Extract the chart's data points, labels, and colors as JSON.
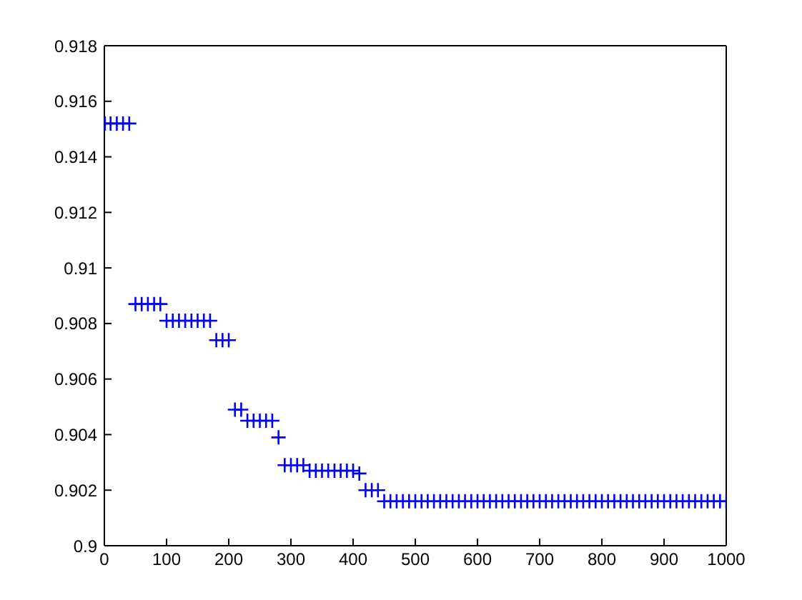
{
  "chart_data": {
    "type": "scatter",
    "marker": "cross",
    "xlim": [
      0,
      1000
    ],
    "xticks": [
      0,
      100,
      200,
      300,
      400,
      500,
      600,
      700,
      800,
      900,
      1000
    ],
    "ylim": [
      0.9,
      0.918
    ],
    "yticks": [
      0.9,
      0.902,
      0.904,
      0.906,
      0.908,
      0.91,
      0.912,
      0.914,
      0.916,
      0.918
    ],
    "series": [
      {
        "color": "#0000ff",
        "x": [
          1,
          10,
          20,
          30,
          40,
          50,
          60,
          70,
          80,
          90,
          100,
          110,
          120,
          130,
          140,
          150,
          160,
          170,
          180,
          190,
          200,
          210,
          220,
          230,
          240,
          250,
          260,
          270,
          280,
          290,
          300,
          310,
          320,
          330,
          340,
          350,
          360,
          370,
          380,
          390,
          400,
          410,
          420,
          430,
          440,
          450,
          460,
          470,
          480,
          490,
          500,
          510,
          520,
          530,
          540,
          550,
          560,
          570,
          580,
          590,
          600,
          610,
          620,
          630,
          640,
          650,
          660,
          670,
          680,
          690,
          700,
          710,
          720,
          730,
          740,
          750,
          760,
          770,
          780,
          790,
          800,
          810,
          820,
          830,
          840,
          850,
          860,
          870,
          880,
          890,
          900,
          910,
          920,
          930,
          940,
          950,
          960,
          970,
          980,
          990,
          1000
        ],
        "values": [
          0.9152,
          0.9152,
          0.9152,
          0.9152,
          0.9152,
          0.9087,
          0.9087,
          0.9087,
          0.9087,
          0.9087,
          0.9081,
          0.9081,
          0.9081,
          0.9081,
          0.9081,
          0.9081,
          0.9081,
          0.9081,
          0.9074,
          0.9074,
          0.9074,
          0.9049,
          0.9049,
          0.9045,
          0.9045,
          0.9045,
          0.9045,
          0.9045,
          0.9039,
          0.9029,
          0.9029,
          0.9029,
          0.9029,
          0.9027,
          0.9027,
          0.9027,
          0.9027,
          0.9027,
          0.9027,
          0.9027,
          0.9027,
          0.9026,
          0.902,
          0.902,
          0.902,
          0.9016,
          0.9016,
          0.9016,
          0.9016,
          0.9016,
          0.9016,
          0.9016,
          0.9016,
          0.9016,
          0.9016,
          0.9016,
          0.9016,
          0.9016,
          0.9016,
          0.9016,
          0.9016,
          0.9016,
          0.9016,
          0.9016,
          0.9016,
          0.9016,
          0.9016,
          0.9016,
          0.9016,
          0.9016,
          0.9016,
          0.9016,
          0.9016,
          0.9016,
          0.9016,
          0.9016,
          0.9016,
          0.9016,
          0.9016,
          0.9016,
          0.9016,
          0.9016,
          0.9016,
          0.9016,
          0.9016,
          0.9016,
          0.9016,
          0.9016,
          0.9016,
          0.9016,
          0.9016,
          0.9016,
          0.9016,
          0.9016,
          0.9016,
          0.9016,
          0.9016,
          0.9016,
          0.9016,
          0.9016,
          0.9016
        ]
      }
    ]
  }
}
